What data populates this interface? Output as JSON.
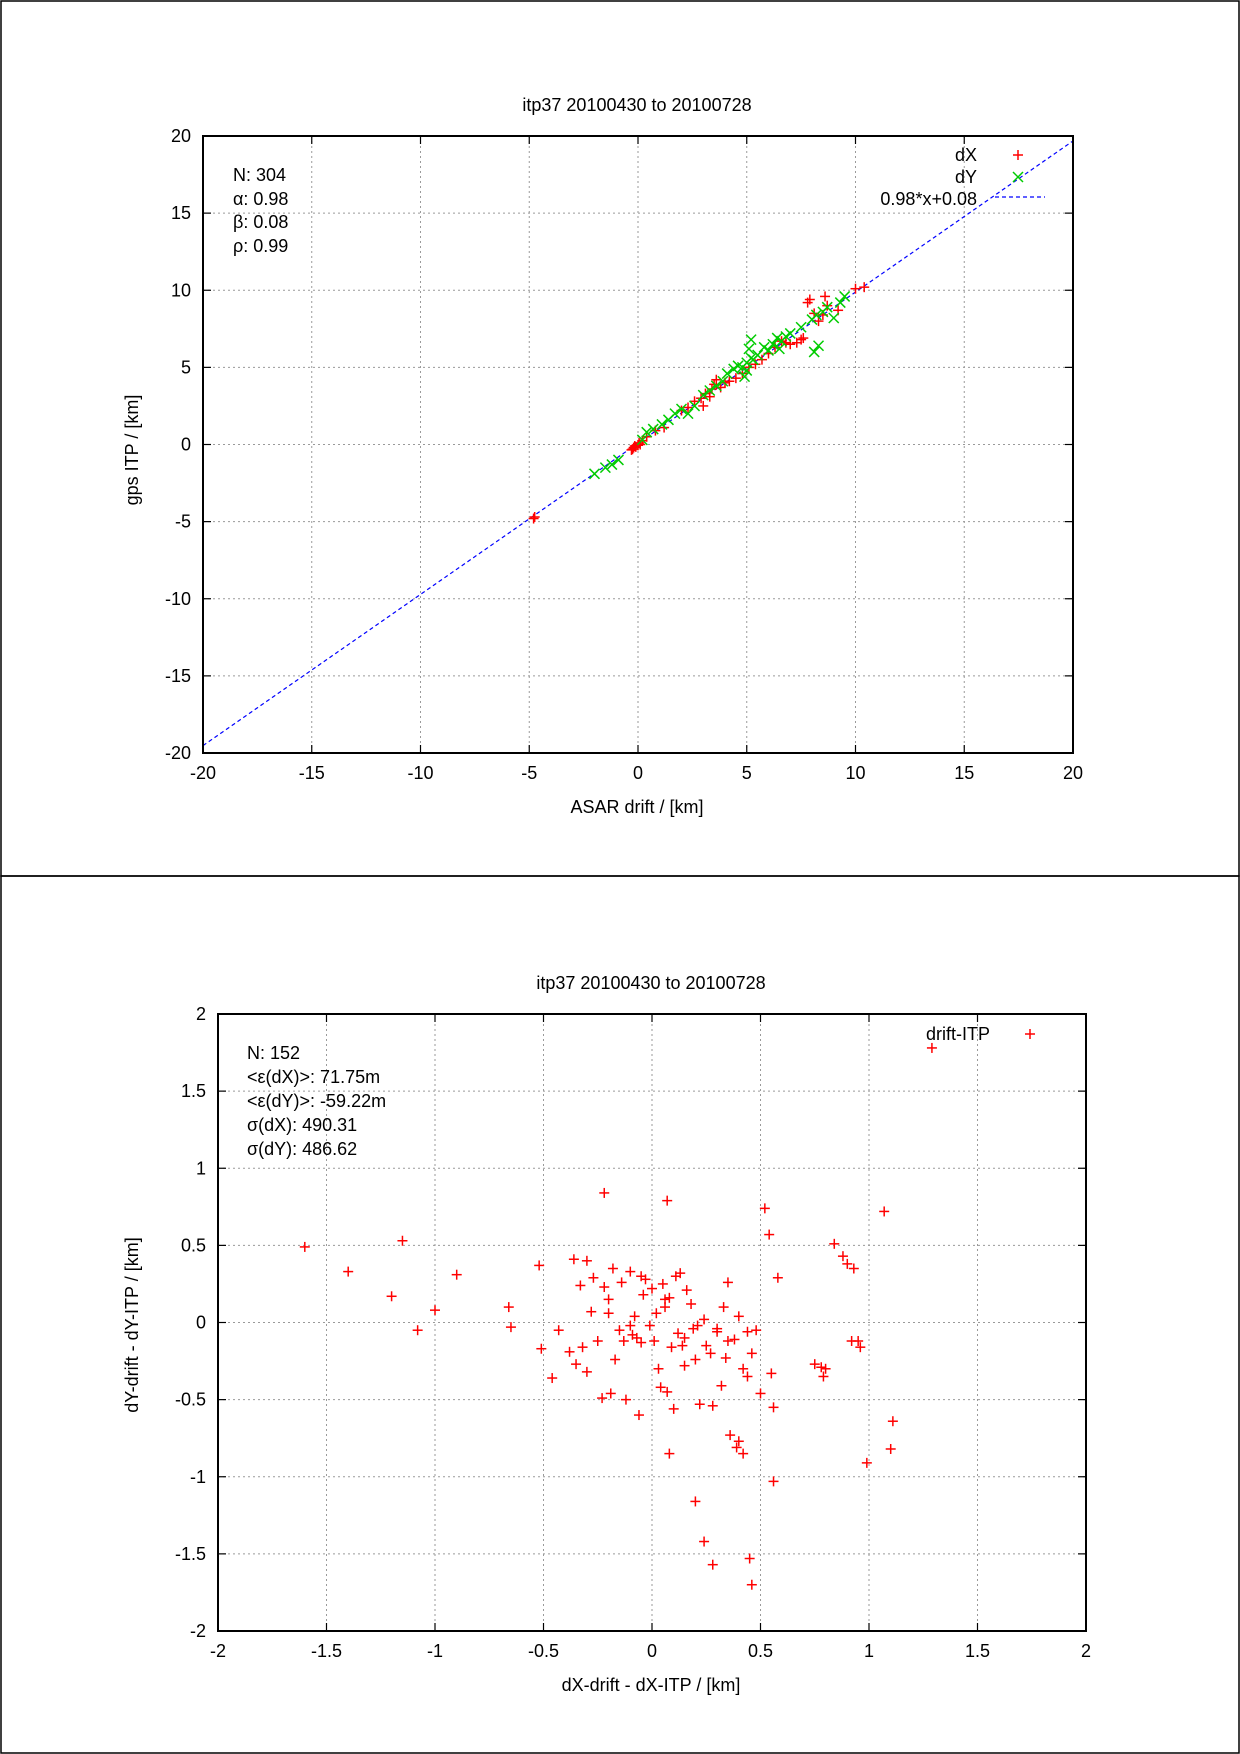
{
  "colors": {
    "dX": "#ff0000",
    "dY": "#00cc00",
    "fit": "#0000ff",
    "driftITP": "#ff0000"
  },
  "chart_data": [
    {
      "type": "scatter",
      "title": "itp37 20100430 to 20100728",
      "xlabel": "ASAR drift / [km]",
      "ylabel": "gps ITP / [km]",
      "xlim": [
        -20,
        20
      ],
      "ylim": [
        -20,
        20
      ],
      "xticks": [
        -20,
        -15,
        -10,
        -5,
        0,
        5,
        10,
        15,
        20
      ],
      "yticks": [
        -20,
        -15,
        -10,
        -5,
        0,
        5,
        10,
        15,
        20
      ],
      "xtick_labels": [
        "-20",
        "-15",
        "-10",
        "-5",
        "0",
        "5",
        "10",
        "15",
        "20"
      ],
      "ytick_labels": [
        "-20",
        "-15",
        "-10",
        "-5",
        "0",
        "5",
        "10",
        "15",
        "20"
      ],
      "grid": true,
      "legend_position": "top-right",
      "stats": [
        "N: 304",
        "α: 0.98",
        "β: 0.08",
        "ρ: 0.99"
      ],
      "fit": {
        "label": "0.98*x+0.08",
        "slope": 0.98,
        "intercept": 0.08
      },
      "series": [
        {
          "name": "dX",
          "marker": "plus",
          "x": [
            -4.8,
            -4.75,
            -0.3,
            -0.2,
            -0.1,
            -0.25,
            0.0,
            0.1,
            -0.15,
            0.05,
            0.2,
            0.4,
            0.8,
            1.2,
            2.0,
            2.3,
            2.6,
            2.9,
            3.1,
            3.4,
            3.6,
            3.5,
            3.8,
            4.2,
            4.5,
            4.8,
            5.1,
            5.4,
            5.7,
            6.0,
            6.3,
            6.6,
            7.0,
            7.3,
            7.6,
            7.8,
            7.9,
            8.1,
            8.3,
            8.5,
            8.6,
            8.7,
            9.2,
            10.0,
            10.4,
            3.0,
            3.3,
            4.0,
            6.8,
            7.5
          ],
          "y": [
            -4.8,
            -4.7,
            -0.35,
            -0.2,
            -0.15,
            -0.3,
            -0.05,
            0.0,
            -0.1,
            0.1,
            0.25,
            0.5,
            0.9,
            1.1,
            2.2,
            2.4,
            2.8,
            3.0,
            3.3,
            3.6,
            4.2,
            3.9,
            3.7,
            4.1,
            4.3,
            4.6,
            5.0,
            5.2,
            5.5,
            5.9,
            6.3,
            6.7,
            6.5,
            6.6,
            6.9,
            9.2,
            9.4,
            8.5,
            8.0,
            8.4,
            9.6,
            9.0,
            8.7,
            10.1,
            10.2,
            2.5,
            3.1,
            4.0,
            6.6,
            6.8
          ]
        },
        {
          "name": "dY",
          "marker": "cross",
          "x": [
            -2.0,
            -1.5,
            -1.2,
            -0.9,
            0.2,
            0.4,
            0.7,
            1.1,
            1.4,
            1.7,
            2.0,
            2.3,
            2.6,
            3.0,
            3.3,
            3.6,
            3.9,
            4.1,
            4.4,
            4.6,
            4.8,
            5.0,
            5.1,
            5.2,
            5.3,
            5.5,
            5.8,
            6.0,
            6.2,
            6.4,
            6.6,
            6.8,
            7.0,
            7.5,
            8.0,
            8.2,
            8.3,
            8.5,
            8.7,
            9.0,
            9.3,
            9.5,
            5.0,
            5.2,
            4.9,
            6.5,
            8.1
          ],
          "y": [
            -1.9,
            -1.5,
            -1.3,
            -1.0,
            0.3,
            0.8,
            1.0,
            1.3,
            1.6,
            2.0,
            2.3,
            2.0,
            2.5,
            3.2,
            3.5,
            3.8,
            4.1,
            4.6,
            4.9,
            5.1,
            5.0,
            5.3,
            6.2,
            6.8,
            5.5,
            5.8,
            6.3,
            6.1,
            6.5,
            6.9,
            6.7,
            7.0,
            7.2,
            7.6,
            8.1,
            8.4,
            6.4,
            8.6,
            8.9,
            8.2,
            9.2,
            9.6,
            4.8,
            5.6,
            4.4,
            6.2,
            6.0
          ]
        }
      ]
    },
    {
      "type": "scatter",
      "title": "itp37 20100430 to 20100728",
      "xlabel": "dX-drift - dX-ITP / [km]",
      "ylabel": "dY-drift - dY-ITP / [km]",
      "xlim": [
        -2,
        2
      ],
      "ylim": [
        -2,
        2
      ],
      "xticks": [
        -2,
        -1.5,
        -1,
        -0.5,
        0,
        0.5,
        1,
        1.5,
        2
      ],
      "yticks": [
        -2,
        -1.5,
        -1,
        -0.5,
        0,
        0.5,
        1,
        1.5,
        2
      ],
      "xtick_labels": [
        "-2",
        "-1.5",
        "-1",
        "-0.5",
        "0",
        "0.5",
        "1",
        "1.5",
        "2"
      ],
      "ytick_labels": [
        "-2",
        "-1.5",
        "-1",
        "-0.5",
        "0",
        "0.5",
        "1",
        "1.5",
        "2"
      ],
      "grid": true,
      "legend_position": "top-right",
      "stats": [
        "N: 152",
        "<ε(dX)>:  71.75m",
        "<ε(dY)>: -59.22m",
        "σ(dX):  490.31",
        "σ(dY):  486.62"
      ],
      "series": [
        {
          "name": "drift-ITP",
          "marker": "plus",
          "x": [
            -1.6,
            -1.4,
            -1.2,
            -1.15,
            -1.08,
            -1.0,
            -0.9,
            -0.66,
            -0.65,
            -0.52,
            -0.51,
            -0.46,
            -0.43,
            -0.38,
            -0.36,
            -0.35,
            -0.33,
            -0.32,
            -0.3,
            -0.28,
            -0.27,
            -0.25,
            -0.23,
            -0.22,
            -0.2,
            -0.19,
            -0.18,
            -0.17,
            -0.15,
            -0.14,
            -0.13,
            -0.12,
            -0.1,
            -0.09,
            -0.08,
            -0.07,
            -0.06,
            -0.05,
            -0.04,
            -0.03,
            -0.01,
            0.0,
            0.01,
            0.02,
            0.03,
            0.04,
            0.05,
            0.06,
            0.07,
            0.08,
            0.09,
            0.1,
            0.11,
            0.12,
            0.13,
            0.15,
            0.16,
            0.18,
            0.19,
            0.2,
            0.21,
            0.22,
            0.24,
            0.25,
            0.27,
            0.28,
            0.3,
            0.32,
            0.33,
            0.34,
            0.35,
            0.36,
            0.38,
            0.39,
            0.4,
            0.42,
            0.44,
            0.46,
            0.48,
            0.5,
            0.52,
            0.54,
            0.55,
            0.56,
            0.58,
            0.75,
            0.78,
            0.79,
            0.8,
            0.84,
            0.88,
            0.9,
            0.92,
            0.93,
            0.95,
            0.96,
            0.99,
            1.07,
            1.1,
            1.11,
            1.29,
            -0.22,
            0.07,
            0.08,
            0.2,
            0.24,
            0.28,
            0.45,
            0.46,
            0.56,
            0.4,
            0.35,
            0.42,
            -0.1,
            -0.05,
            0.14,
            0.06,
            -0.3,
            -0.2,
            0.3,
            0.15,
            0.44
          ],
          "y": [
            0.49,
            0.33,
            0.17,
            0.53,
            -0.05,
            0.08,
            0.31,
            0.1,
            -0.03,
            0.37,
            -0.17,
            -0.36,
            -0.05,
            -0.19,
            0.41,
            -0.27,
            0.24,
            -0.16,
            -0.32,
            0.07,
            0.29,
            -0.12,
            -0.49,
            0.23,
            0.15,
            -0.46,
            0.35,
            -0.24,
            -0.05,
            0.26,
            -0.12,
            -0.5,
            0.33,
            -0.08,
            0.04,
            -0.1,
            -0.6,
            -0.13,
            0.18,
            0.28,
            -0.02,
            0.22,
            -0.12,
            0.06,
            -0.3,
            -0.42,
            0.25,
            0.1,
            -0.45,
            0.16,
            -0.16,
            -0.56,
            0.3,
            -0.07,
            0.32,
            -0.28,
            0.21,
            0.12,
            -0.04,
            -0.24,
            -0.02,
            -0.53,
            0.02,
            -0.15,
            -0.2,
            -0.54,
            -0.04,
            -0.41,
            0.1,
            -0.23,
            0.26,
            -0.73,
            -0.11,
            -0.81,
            0.04,
            -0.3,
            -0.06,
            -0.2,
            -0.05,
            -0.46,
            0.74,
            0.57,
            -0.33,
            -1.03,
            0.29,
            -0.27,
            -0.29,
            -0.35,
            -0.3,
            0.51,
            0.43,
            0.38,
            -0.12,
            0.35,
            -0.12,
            -0.16,
            -0.91,
            0.72,
            -0.82,
            -0.64,
            1.78,
            0.84,
            0.79,
            -0.85,
            -1.16,
            -1.42,
            -1.57,
            -1.53,
            -1.7,
            -0.55,
            -0.77,
            -0.12,
            -0.85,
            -0.02,
            0.3,
            -0.15,
            0.15,
            0.4,
            0.06,
            -0.06,
            -0.1,
            -0.35
          ]
        }
      ]
    }
  ]
}
